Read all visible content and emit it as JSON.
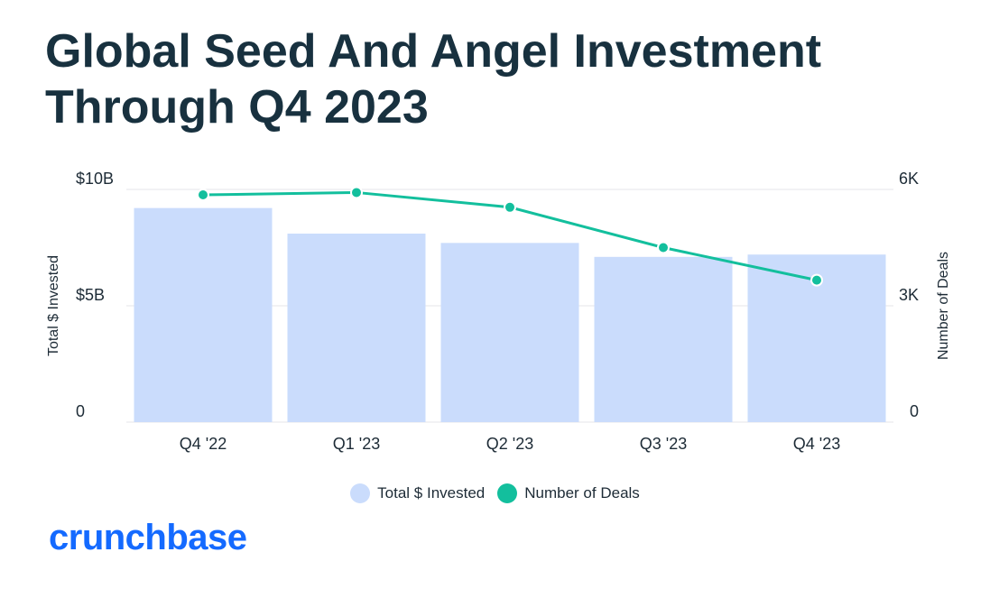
{
  "title": "Global Seed And Angel Investment Through Q4 2023",
  "brand": {
    "name": "crunchbase",
    "color": "#146aff"
  },
  "colors": {
    "bar": "#cadcfc",
    "line": "#13bf9d",
    "grid": "#e4e6ea",
    "text": "#1d2b36"
  },
  "chart_data": {
    "type": "bar",
    "categories": [
      "Q4 '22",
      "Q1 '23",
      "Q2 '23",
      "Q3 '23",
      "Q4 '23"
    ],
    "series": [
      {
        "name": "Total $ Invested",
        "type": "bar",
        "axis": "left",
        "values": [
          9.2,
          8.1,
          7.7,
          7.1,
          7.2
        ]
      },
      {
        "name": "Number of Deals",
        "type": "line",
        "axis": "right",
        "values": [
          5860,
          5920,
          5540,
          4500,
          3660
        ]
      }
    ],
    "y_left": {
      "label": "Total $ Invested",
      "ylim": [
        0,
        10
      ],
      "ticks": [
        0,
        5,
        10
      ],
      "tick_labels": [
        "0",
        "$5B",
        "$10B"
      ]
    },
    "y_right": {
      "label": "Number of Deals",
      "ylim": [
        0,
        6000
      ],
      "ticks": [
        0,
        3000,
        6000
      ],
      "tick_labels": [
        "0",
        "3K",
        "6K"
      ]
    },
    "grid": true,
    "legend": {
      "position": "bottom",
      "entries": [
        "Total $ Invested",
        "Number of Deals"
      ]
    }
  }
}
